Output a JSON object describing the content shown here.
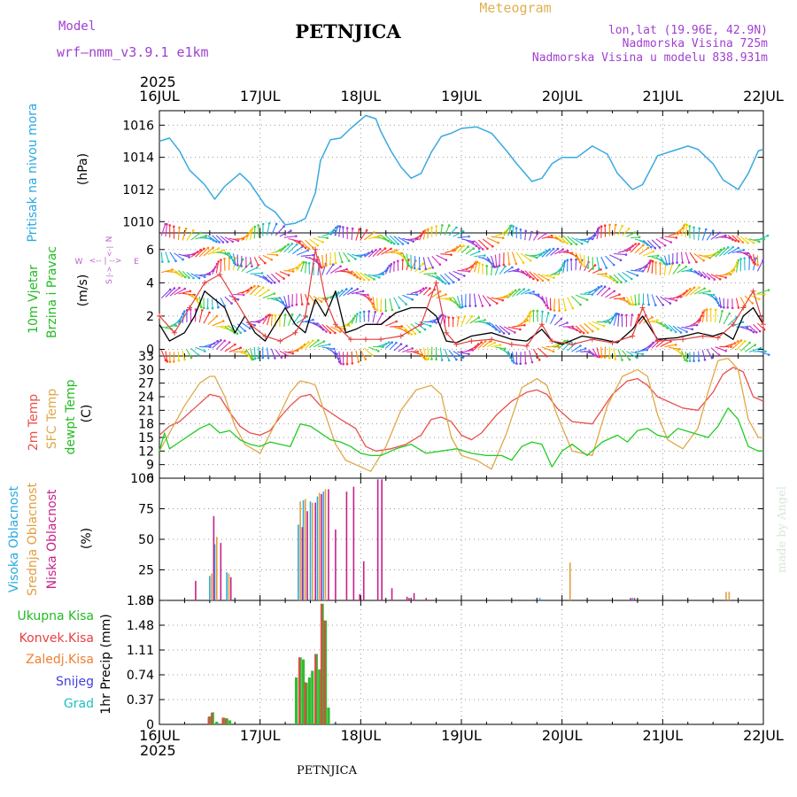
{
  "header": {
    "model_label": "Model",
    "model_name": "wrf—nmm_v3.9.1  e1km",
    "station": "PETNJICA",
    "product": "Meteogram",
    "lonlat": "lon,lat (19.96E, 42.9N)",
    "elevation": "Nadmorska Visina 725m",
    "model_elevation": "Nadmorska Visina u modelu 838.931m",
    "year_top": "2025",
    "year_bottom": "2025",
    "footer_station": "PETNJICA",
    "credit": "made by Angel"
  },
  "colors": {
    "pressure": "#3aa9e0",
    "wind_speed": "#000000",
    "gust": "#e04040",
    "t2m": "#e8504a",
    "sfc": "#e0a848",
    "dew": "#22cc22",
    "high_cloud": "#29a9e0",
    "mid_cloud": "#e0a040",
    "low_cloud": "#c81f8a",
    "total_precip": "#33bb33",
    "conv_precip": "#e84040",
    "frozen_precip": "#f08030",
    "snow": "#4040e0",
    "graupel": "#20c0c0",
    "grid": "#999999"
  },
  "chart_data": [
    {
      "type": "line",
      "panel": "pressure",
      "ylabel_left": "Pritisak na nivou mora",
      "ylabel_unit": "(hPa)",
      "x_ticks": [
        "16JUL",
        "17JUL",
        "18JUL",
        "19JUL",
        "20JUL",
        "21JUL",
        "22JUL"
      ],
      "ylim": [
        1009.3,
        1016.9
      ],
      "y_ticks": [
        1010,
        1012,
        1014,
        1016
      ],
      "grid": true,
      "series": [
        {
          "x": [
            16.0,
            16.1,
            16.2,
            16.3,
            16.45,
            16.55,
            16.65,
            16.8,
            16.9,
            17.05,
            17.15,
            17.25,
            17.35,
            17.45,
            17.55,
            17.6,
            17.7,
            17.8,
            17.9,
            18.05,
            18.15,
            18.2,
            18.3,
            18.4,
            18.5,
            18.6,
            18.7,
            18.8,
            18.9,
            19.0,
            19.15,
            19.3,
            19.45,
            19.55,
            19.7,
            19.8,
            19.9,
            20.0,
            20.15,
            20.3,
            20.45,
            20.55,
            20.7,
            20.8,
            20.95,
            21.1,
            21.25,
            21.35,
            21.5,
            21.6,
            21.75,
            21.85,
            21.95,
            22.0
          ],
          "values": [
            1015.0,
            1015.2,
            1014.4,
            1013.2,
            1012.3,
            1011.4,
            1012.2,
            1013.0,
            1012.4,
            1011.0,
            1010.6,
            1009.8,
            1009.9,
            1010.2,
            1011.8,
            1013.8,
            1015.1,
            1015.2,
            1015.8,
            1016.6,
            1016.4,
            1015.6,
            1014.4,
            1013.4,
            1012.7,
            1013.0,
            1014.3,
            1015.3,
            1015.5,
            1015.8,
            1015.9,
            1015.5,
            1014.4,
            1013.6,
            1012.5,
            1012.7,
            1013.6,
            1014.0,
            1014.0,
            1014.7,
            1014.2,
            1013.0,
            1012.0,
            1012.3,
            1014.1,
            1014.4,
            1014.7,
            1014.5,
            1013.6,
            1012.6,
            1012.0,
            1013.0,
            1014.4,
            1014.5
          ]
        }
      ]
    },
    {
      "type": "line",
      "panel": "wind",
      "ylabel_left_1": "10m Vjetar",
      "ylabel_left_2": "Brzina i Pravac",
      "ylabel_unit": "(m/s)",
      "compass": {
        "n": "N",
        "s": "S",
        "w": "W",
        "e": "E"
      },
      "ylim": [
        -0.4,
        7.0
      ],
      "y_ticks": [
        0,
        2,
        4,
        6
      ],
      "grid": true,
      "series": [
        {
          "name": "speed",
          "x": [
            16.0,
            16.1,
            16.25,
            16.35,
            16.45,
            16.55,
            16.65,
            16.75,
            16.85,
            16.95,
            17.05,
            17.15,
            17.25,
            17.35,
            17.45,
            17.55,
            17.65,
            17.75,
            17.85,
            17.95,
            18.05,
            18.2,
            18.35,
            18.5,
            18.65,
            18.75,
            18.85,
            18.95,
            19.1,
            19.3,
            19.5,
            19.65,
            19.8,
            19.9,
            20.0,
            20.2,
            20.4,
            20.55,
            20.7,
            20.8,
            20.95,
            21.15,
            21.35,
            21.5,
            21.6,
            21.7,
            21.8,
            21.9,
            22.0
          ],
          "values": [
            1.5,
            0.5,
            1.0,
            2.0,
            3.5,
            3.0,
            2.5,
            1.0,
            2.0,
            1.0,
            0.5,
            1.5,
            2.5,
            1.5,
            1.0,
            3.0,
            2.0,
            3.5,
            1.0,
            1.2,
            1.5,
            1.5,
            2.2,
            2.5,
            2.5,
            2.0,
            0.5,
            0.4,
            0.8,
            1.0,
            0.6,
            0.5,
            1.2,
            0.5,
            0.3,
            0.8,
            0.6,
            0.4,
            1.2,
            2.0,
            0.6,
            0.7,
            1.0,
            0.8,
            1.0,
            0.6,
            2.0,
            2.5,
            1.5
          ]
        },
        {
          "name": "gust",
          "x": [
            16.0,
            16.15,
            16.3,
            16.45,
            16.6,
            16.75,
            16.9,
            17.05,
            17.2,
            17.35,
            17.45,
            17.55,
            17.65,
            17.75,
            17.9,
            18.05,
            18.2,
            18.4,
            18.6,
            18.75,
            18.85,
            18.95,
            19.1,
            19.3,
            19.5,
            19.65,
            19.8,
            19.9,
            20.1,
            20.3,
            20.5,
            20.7,
            20.8,
            20.95,
            21.2,
            21.4,
            21.55,
            21.7,
            21.8,
            21.9,
            22.0
          ],
          "values": [
            2.0,
            1.0,
            2.5,
            4.0,
            4.5,
            3.0,
            1.5,
            0.8,
            0.5,
            1.0,
            2.0,
            6.0,
            3.0,
            1.5,
            0.6,
            0.6,
            0.6,
            0.8,
            1.5,
            4.0,
            1.0,
            0.3,
            0.5,
            0.6,
            0.3,
            0.2,
            1.5,
            0.5,
            0.3,
            0.6,
            0.4,
            0.8,
            2.5,
            0.5,
            0.6,
            0.8,
            0.7,
            1.5,
            2.5,
            3.5,
            1.5
          ]
        }
      ]
    },
    {
      "type": "line",
      "panel": "temperature",
      "ylabel_left_1": "2m Temp",
      "ylabel_left_2": "SFC Temp",
      "ylabel_left_3": "dewpt Temp",
      "ylabel_unit": "(C)",
      "ylim": [
        6,
        33
      ],
      "y_ticks": [
        6,
        9,
        12,
        15,
        18,
        21,
        24,
        27,
        30,
        33
      ],
      "grid": true,
      "series": [
        {
          "name": "2m",
          "x": [
            16.0,
            16.1,
            16.2,
            16.35,
            16.5,
            16.6,
            16.7,
            16.8,
            16.9,
            17.0,
            17.1,
            17.2,
            17.3,
            17.4,
            17.5,
            17.6,
            17.7,
            17.8,
            17.95,
            18.05,
            18.15,
            18.3,
            18.45,
            18.6,
            18.7,
            18.8,
            18.9,
            19.0,
            19.1,
            19.2,
            19.35,
            19.5,
            19.65,
            19.75,
            19.85,
            19.95,
            20.1,
            20.3,
            20.5,
            20.65,
            20.75,
            20.85,
            20.95,
            21.05,
            21.2,
            21.35,
            21.5,
            21.6,
            21.7,
            21.8,
            21.9,
            22.0
          ],
          "values": [
            15.5,
            17.5,
            18.5,
            21.5,
            24.5,
            24.0,
            20.5,
            17.5,
            16.0,
            15.5,
            16.5,
            19.5,
            22.0,
            24.0,
            24.5,
            22.0,
            20.5,
            19.0,
            17.0,
            13.0,
            12.0,
            12.5,
            13.5,
            15.5,
            19.0,
            19.5,
            18.5,
            15.5,
            14.5,
            16.0,
            20.0,
            23.0,
            25.0,
            25.5,
            24.5,
            21.5,
            18.5,
            18.0,
            24.5,
            27.5,
            28.0,
            26.5,
            24.0,
            23.0,
            21.5,
            21.0,
            25.0,
            29.0,
            30.5,
            29.5,
            24.0,
            23.0
          ]
        },
        {
          "name": "sfc",
          "x": [
            16.0,
            16.1,
            16.25,
            16.4,
            16.5,
            16.55,
            16.65,
            16.75,
            16.85,
            17.0,
            17.15,
            17.3,
            17.4,
            17.5,
            17.55,
            17.65,
            17.75,
            17.85,
            18.0,
            18.1,
            18.25,
            18.4,
            18.55,
            18.7,
            18.8,
            18.9,
            19.0,
            19.15,
            19.3,
            19.45,
            19.6,
            19.75,
            19.85,
            19.95,
            20.1,
            20.3,
            20.45,
            20.6,
            20.75,
            20.85,
            20.95,
            21.05,
            21.2,
            21.35,
            21.45,
            21.55,
            21.65,
            21.75,
            21.85,
            21.95,
            22.0
          ],
          "values": [
            12.0,
            16.0,
            22.0,
            27.0,
            28.5,
            28.5,
            24.0,
            17.5,
            13.5,
            11.5,
            18.0,
            25.0,
            27.5,
            27.0,
            26.5,
            20.0,
            13.5,
            10.0,
            8.5,
            7.5,
            13.0,
            21.0,
            25.5,
            26.5,
            24.5,
            15.0,
            11.0,
            10.0,
            8.0,
            16.0,
            26.0,
            28.0,
            26.5,
            20.0,
            12.0,
            11.0,
            22.0,
            28.5,
            30.0,
            28.5,
            20.0,
            14.5,
            12.5,
            17.0,
            25.0,
            32.0,
            32.5,
            30.0,
            19.0,
            15.0,
            15.0
          ]
        },
        {
          "name": "dewpt",
          "x": [
            16.0,
            16.05,
            16.1,
            16.2,
            16.3,
            16.4,
            16.5,
            16.6,
            16.7,
            16.8,
            16.9,
            17.0,
            17.1,
            17.2,
            17.3,
            17.4,
            17.5,
            17.6,
            17.7,
            17.8,
            17.9,
            18.0,
            18.1,
            18.2,
            18.35,
            18.5,
            18.65,
            18.8,
            18.95,
            19.1,
            19.25,
            19.4,
            19.5,
            19.6,
            19.7,
            19.8,
            19.85,
            19.9,
            20.0,
            20.1,
            20.25,
            20.4,
            20.55,
            20.65,
            20.75,
            20.85,
            20.95,
            21.05,
            21.15,
            21.3,
            21.45,
            21.55,
            21.65,
            21.75,
            21.85,
            21.95,
            22.0
          ],
          "values": [
            12.0,
            16.0,
            12.5,
            14.0,
            15.5,
            17.0,
            18.0,
            16.0,
            16.5,
            14.5,
            13.5,
            13.0,
            14.0,
            13.5,
            13.0,
            18.0,
            17.5,
            16.0,
            14.5,
            14.0,
            13.0,
            11.5,
            11.0,
            11.0,
            12.5,
            13.5,
            11.5,
            12.0,
            12.5,
            11.5,
            11.0,
            11.0,
            10.0,
            13.0,
            14.0,
            13.5,
            11.0,
            8.5,
            12.0,
            13.5,
            11.0,
            14.0,
            15.5,
            14.0,
            16.5,
            17.0,
            15.5,
            15.0,
            17.0,
            16.0,
            15.0,
            17.5,
            21.5,
            19.0,
            13.0,
            12.0,
            12.0
          ]
        }
      ]
    },
    {
      "type": "bar",
      "panel": "clouds",
      "ylabel_left_1": "Visoka Oblacnost",
      "ylabel_left_2": "Srednja Oblacnost",
      "ylabel_left_3": "Niska Oblacnost",
      "ylabel_unit": "(%)",
      "ylim": [
        0,
        100
      ],
      "y_ticks": [
        0,
        25,
        50,
        75,
        100
      ],
      "grid": true,
      "series": [
        {
          "name": "high",
          "x": [
            16.5,
            16.55,
            16.67,
            17.38,
            17.43,
            17.5,
            17.57,
            17.63,
            19.78,
            20.7
          ],
          "values": [
            20,
            46,
            23,
            62,
            82,
            81,
            85,
            89,
            2,
            2
          ]
        },
        {
          "name": "mid",
          "x": [
            16.06,
            16.52,
            16.57,
            16.69,
            17.4,
            17.45,
            17.52,
            17.59,
            17.65,
            20.08,
            21.63,
            21.66
          ],
          "values": [
            1,
            22,
            52,
            22,
            81,
            83,
            80,
            88,
            91,
            31,
            7,
            7
          ]
        },
        {
          "name": "low",
          "x": [
            16.36,
            16.54,
            16.61,
            16.71,
            17.42,
            17.47,
            17.55,
            17.61,
            17.68,
            17.75,
            17.86,
            17.93,
            17.99,
            18.03,
            18.17,
            18.21,
            18.31,
            18.46,
            18.48,
            18.53,
            18.65,
            20.68,
            20.72
          ],
          "values": [
            16,
            69,
            47,
            19,
            60,
            73,
            80,
            87,
            91,
            58,
            89,
            93,
            5,
            32,
            99,
            99,
            10,
            3,
            2,
            6,
            2,
            2,
            2
          ]
        }
      ]
    },
    {
      "type": "bar",
      "panel": "precipitation",
      "ylabel_unit": "1hr Precip  (mm)",
      "legend": [
        "Ukupna  Kisa",
        "Konvek.Kisa",
        "Zaledj.Kisa",
        "Snijeg",
        "Grad"
      ],
      "ylim": [
        0,
        1.85
      ],
      "y_ticks": [
        0,
        0.37,
        0.74,
        1.11,
        1.48,
        1.85
      ],
      "grid": true,
      "series": [
        {
          "name": "total",
          "x": [
            16.5,
            16.53,
            16.57,
            16.64,
            16.67,
            16.7,
            17.36,
            17.4,
            17.43,
            17.46,
            17.49,
            17.52,
            17.56,
            17.59,
            17.62,
            17.65,
            17.68,
            17.71
          ],
          "values": [
            0.12,
            0.18,
            0.04,
            0.1,
            0.09,
            0.06,
            0.7,
            1.0,
            0.97,
            0.62,
            0.7,
            0.8,
            1.05,
            0.82,
            1.8,
            1.55,
            0.25,
            0.01
          ]
        },
        {
          "name": "convective",
          "x": [
            16.49,
            16.52,
            16.63,
            16.66,
            17.39,
            17.45,
            17.55,
            17.61,
            17.64
          ],
          "values": [
            0.11,
            0.17,
            0.1,
            0.09,
            1.0,
            0.63,
            1.05,
            1.8,
            1.55
          ]
        }
      ]
    }
  ]
}
